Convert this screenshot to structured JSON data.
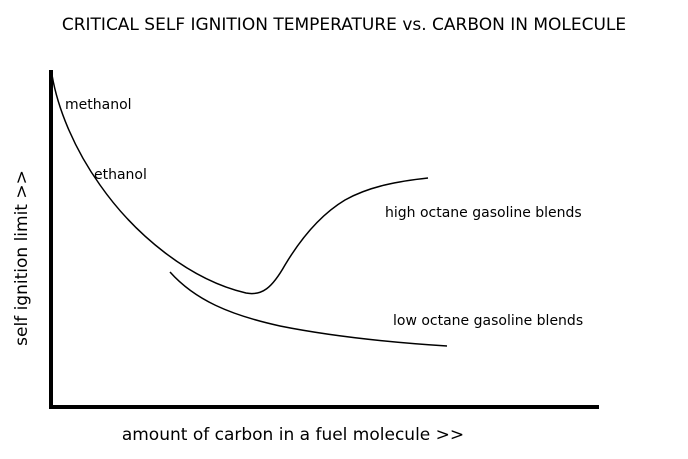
{
  "chart_data": {
    "type": "line",
    "title": "CRITICAL SELF IGNITION TEMPERATURE vs. CARBON IN MOLECULE",
    "xlabel": "amount of carbon in a fuel molecule >>",
    "ylabel": "self ignition limit >>",
    "grid": false,
    "ticks": false,
    "annotations": [
      "methanol",
      "ethanol"
    ],
    "series": [
      {
        "name": "high octane gasoline blends",
        "shape": "falls steeply, reaches a minimum, then rises and levels off"
      },
      {
        "name": "low octane gasoline blends",
        "shape": "falls gradually and levels off"
      }
    ],
    "colors": {
      "line": "#000000",
      "background": "#ffffff"
    }
  }
}
